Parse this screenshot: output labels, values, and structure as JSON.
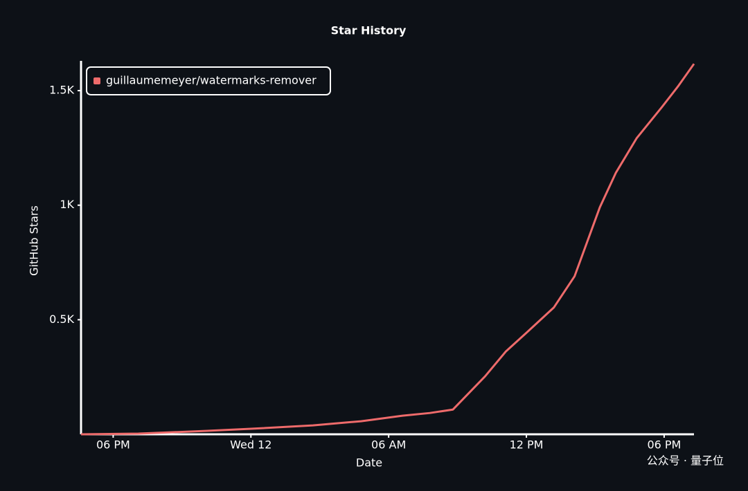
{
  "chart_data": {
    "type": "line",
    "title": "Star History",
    "x_label": "Date",
    "y_label": "GitHub Stars",
    "x": [
      16.6,
      19.1,
      22.1,
      24,
      26.7,
      28.8,
      30.6,
      31.8,
      32.8,
      34.2,
      35.1,
      36.0,
      37.2,
      38.1,
      39.2,
      39.9,
      40.8,
      41.9,
      42.6,
      43.3
    ],
    "series": [
      {
        "name": "guillaumemeyer/watermarks-remover",
        "color": "#ee6b6b",
        "values": [
          0,
          3,
          15,
          24,
          39,
          57,
          81,
          93,
          108,
          253,
          361,
          443,
          554,
          690,
          991,
          1142,
          1292,
          1428,
          1518,
          1617
        ]
      }
    ],
    "xlim": [
      16.6,
      43.3
    ],
    "xticks": [
      {
        "value": 18,
        "label": "06 PM"
      },
      {
        "value": 24,
        "label": "Wed 12"
      },
      {
        "value": 30,
        "label": "06 AM"
      },
      {
        "value": 36,
        "label": "12 PM"
      },
      {
        "value": 42,
        "label": "06 PM"
      }
    ],
    "ylim": [
      0,
      1630
    ],
    "yticks": [
      {
        "value": 500,
        "label": "0.5K"
      },
      {
        "value": 1000,
        "label": "1K"
      },
      {
        "value": 1500,
        "label": "1.5K"
      }
    ],
    "legend": "top-left",
    "watermark": "公众号 · 量子位"
  }
}
